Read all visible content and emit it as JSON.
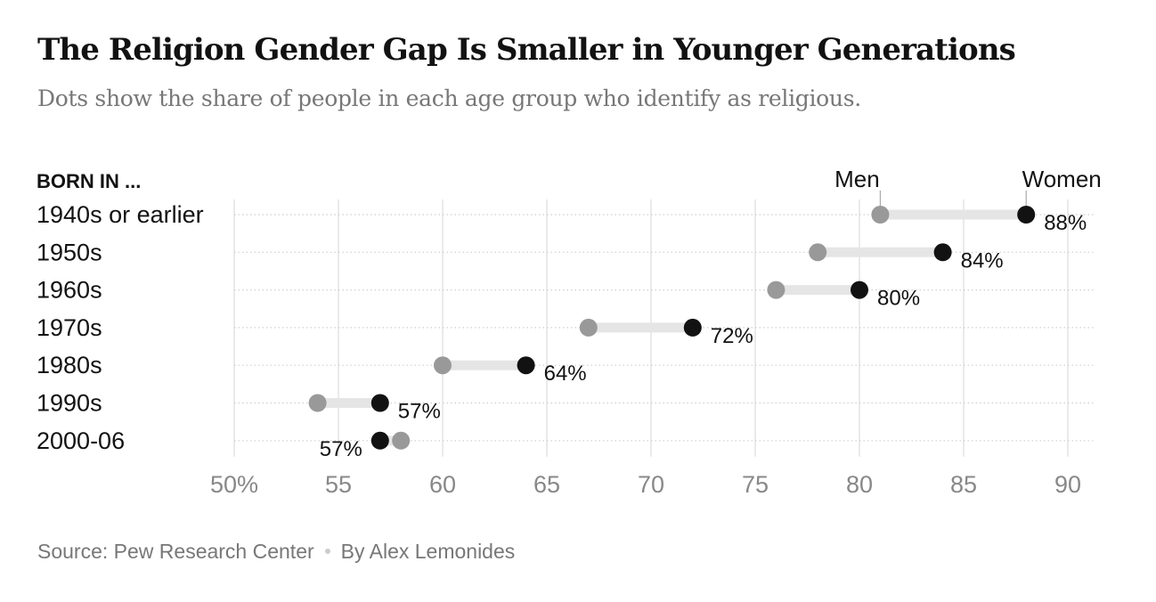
{
  "title": "The Religion Gender Gap Is Smaller in Younger Generations",
  "subtitle": "Dots show the share of people in each age group who identify as religious.",
  "footer": {
    "source": "Source: Pew Research Center",
    "byline": "By Alex Lemonides"
  },
  "colors": {
    "men": "#999999",
    "women": "#121212",
    "connector": "#e5e5e5",
    "grid": "#dddddd"
  },
  "chart_data": {
    "type": "dumbbell",
    "y_header": "BORN IN ...",
    "categories": [
      "1940s or earlier",
      "1950s",
      "1960s",
      "1970s",
      "1980s",
      "1990s",
      "2000-06"
    ],
    "series": [
      {
        "name": "Men",
        "values": [
          81,
          78,
          76,
          67,
          60,
          54,
          58
        ]
      },
      {
        "name": "Women",
        "values": [
          88,
          84,
          80,
          72,
          64,
          57,
          57
        ]
      }
    ],
    "value_labels": [
      "88%",
      "84%",
      "80%",
      "72%",
      "64%",
      "57%",
      "57%"
    ],
    "xlim": [
      50,
      90
    ],
    "x_ticks": [
      50,
      55,
      60,
      65,
      70,
      75,
      80,
      85,
      90
    ],
    "x_tick_labels": [
      "50%",
      "55",
      "60",
      "65",
      "70",
      "75",
      "80",
      "85",
      "90"
    ],
    "legend_placement": "above first row, labeling each dot",
    "grid": true
  }
}
